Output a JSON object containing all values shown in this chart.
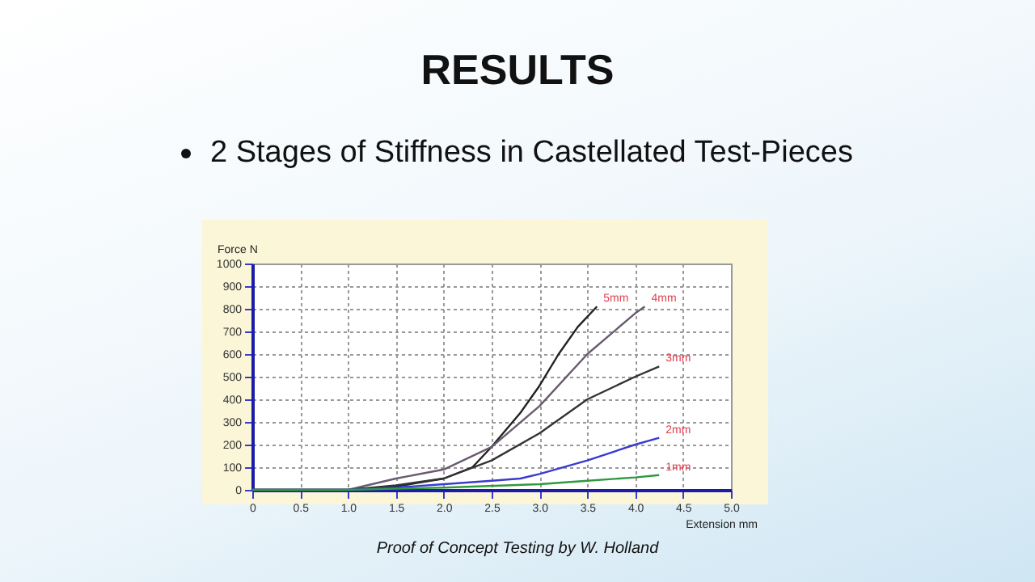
{
  "chart_data": {
    "type": "line",
    "title": "RESULTS",
    "subtitle": "2 Stages of Stiffness in Castellated Test-Pieces",
    "xlabel": "Extension mm",
    "ylabel": "Force N",
    "annotations": [
      "Proof of Concept Testing by W. Holland"
    ],
    "xlim": [
      0,
      5
    ],
    "xticks": [
      0,
      0.5,
      {
        "value": 1,
        "label": "1.0"
      },
      1.5,
      {
        "value": 2,
        "label": "2.0"
      },
      2.5,
      {
        "value": 3,
        "label": "3.0"
      },
      3.5,
      {
        "value": 4,
        "label": "4.0"
      },
      4.5,
      {
        "value": 5,
        "label": "5.0"
      }
    ],
    "ylim": [
      0,
      1000
    ],
    "yticks": [
      0,
      100,
      200,
      300,
      400,
      500,
      600,
      700,
      800,
      900,
      1000
    ],
    "grid": true,
    "series": [
      {
        "name": "5mm",
        "color": "#222222",
        "x": [
          0,
          1.0,
          1.5,
          2.0,
          2.3,
          2.5,
          2.8,
          3.0,
          3.2,
          3.4,
          3.6
        ],
        "values": [
          0,
          0,
          15,
          50,
          100,
          190,
          340,
          460,
          600,
          720,
          810
        ]
      },
      {
        "name": "4mm",
        "color": "#6a5a70",
        "x": [
          0,
          1.0,
          1.5,
          2.0,
          2.5,
          3.0,
          3.5,
          4.0,
          4.1
        ],
        "values": [
          0,
          0,
          50,
          90,
          190,
          370,
          600,
          780,
          810
        ]
      },
      {
        "name": "3mm",
        "color": "#333333",
        "x": [
          0,
          1.0,
          1.5,
          2.0,
          2.5,
          3.0,
          3.5,
          4.0,
          4.25
        ],
        "values": [
          0,
          0,
          20,
          50,
          130,
          250,
          400,
          500,
          545
        ]
      },
      {
        "name": "2mm",
        "color": "#3a3ad0",
        "x": [
          0,
          1.0,
          1.5,
          2.0,
          2.5,
          2.8,
          3.0,
          3.5,
          4.0,
          4.25
        ],
        "values": [
          0,
          0,
          10,
          25,
          40,
          50,
          70,
          130,
          200,
          230
        ]
      },
      {
        "name": "1mm",
        "color": "#2e9a3e",
        "x": [
          0,
          1.0,
          2.0,
          3.0,
          3.5,
          4.0,
          4.25
        ],
        "values": [
          0,
          0,
          10,
          25,
          40,
          55,
          65
        ]
      }
    ]
  }
}
